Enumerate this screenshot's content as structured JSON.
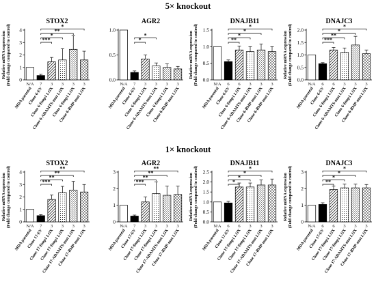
{
  "sections": [
    {
      "title": "5× knockout"
    },
    {
      "title": "1× knockout"
    }
  ],
  "colors": {
    "parental": "#ffffff",
    "ev": "#000000",
    "stroke": "#000000",
    "bracket": "#000000"
  },
  "chart_data": [
    {
      "type": "bar",
      "title": "STOX2",
      "ylabel": "Relative mRNA expression\n(Fold change compared to control)",
      "ylim": [
        0,
        4
      ],
      "yticks": [
        0,
        1,
        2,
        3,
        4
      ],
      "categories": [
        "MDA parental",
        "Clone 6-EV",
        "Clone 6-Dmp1 LOX",
        "Clone 6-ADAMTS-mut LOX",
        "Clone 6-Dmp1 LOX",
        "Clone 6-BMP-mut LOX"
      ],
      "n_labels": [
        "N/A",
        "7",
        "3",
        "3",
        "3",
        "3"
      ],
      "values": [
        1.0,
        0.35,
        1.45,
        1.6,
        2.45,
        1.6
      ],
      "errors": [
        0,
        0.1,
        0.35,
        0.9,
        1.1,
        0.7
      ],
      "patterns": [
        "white",
        "black",
        "diag",
        "dots",
        "lines",
        "cross"
      ],
      "significance": [
        {
          "from": 1,
          "to": 2,
          "label": "***"
        },
        {
          "from": 1,
          "to": 3,
          "label": "*"
        },
        {
          "from": 1,
          "to": 4,
          "label": "**"
        },
        {
          "from": 1,
          "to": 5,
          "label": "*"
        }
      ]
    },
    {
      "type": "bar",
      "title": "AGR2",
      "ylabel": "",
      "ylim": [
        0,
        1
      ],
      "yticks": [
        0,
        0.5,
        1
      ],
      "ytick_labels": [
        "0.0",
        "0.5",
        "1.0"
      ],
      "categories": [
        "MDA parental",
        "Clone 6-EV",
        "Clone 6-Dmp1 LOX",
        "Clone 6-ADAMTS-mut LOX",
        "Clone 6-Dmp1 LOX",
        "Clone 6-BMP-mut LOX"
      ],
      "n_labels": [
        "N/A",
        "7",
        "3",
        "3",
        "3",
        "3"
      ],
      "values": [
        1.0,
        0.15,
        0.42,
        0.28,
        0.25,
        0.22
      ],
      "errors": [
        0,
        0.03,
        0.08,
        0.06,
        0.07,
        0.05
      ],
      "patterns": [
        "white",
        "black",
        "diag",
        "dots",
        "lines",
        "cross"
      ],
      "significance": [
        {
          "from": 1,
          "to": 2,
          "label": "*"
        },
        {
          "from": 1,
          "to": 3,
          "label": "*"
        }
      ]
    },
    {
      "type": "bar",
      "title": "DNAJB11",
      "ylabel": "Relative mRNA expression\n(Fold change compared to control)",
      "ylim": [
        0,
        1.5
      ],
      "yticks": [
        0,
        0.5,
        1,
        1.5
      ],
      "ytick_labels": [
        "0.0",
        "0.5",
        "1.0",
        "1.5"
      ],
      "categories": [
        "MDA parental",
        "Clone 6-EV",
        "Clone 6-Dmp1 LOX",
        "Clone 6-ADAMTS-mut LOX",
        "Clone 6-BMP-mut LOX",
        "Clone 6-BMP-mut LOX"
      ],
      "n_labels": [
        "N/A",
        "6",
        "6",
        "3",
        "3",
        "3"
      ],
      "values": [
        1.0,
        0.55,
        0.9,
        0.85,
        0.9,
        0.85
      ],
      "errors": [
        0,
        0.05,
        0.12,
        0.15,
        0.18,
        0.15
      ],
      "patterns": [
        "white",
        "black",
        "diag",
        "dots",
        "lines",
        "cross"
      ],
      "significance": [
        {
          "from": 1,
          "to": 2,
          "label": "**"
        },
        {
          "from": 1,
          "to": 3,
          "label": "*"
        },
        {
          "from": 1,
          "to": 4,
          "label": "*"
        },
        {
          "from": 1,
          "to": 5,
          "label": "*"
        }
      ]
    },
    {
      "type": "bar",
      "title": "DNAJC3",
      "ylabel": "Relative mRNA expression\n(Fold change compared to control)",
      "ylim": [
        0,
        2
      ],
      "yticks": [
        0,
        0.5,
        1,
        1.5,
        2
      ],
      "ytick_labels": [
        "0.0",
        "0.5",
        "1.0",
        "1.5",
        "2.0"
      ],
      "categories": [
        "MDA parental",
        "Clone 6-EV",
        "Clone 6-Dmp1 LOX",
        "Clone 6-ADAMTS-mut LOX",
        "Clone 6-Dmp1 LOX",
        "Clone 6-BMP-mut LOX"
      ],
      "n_labels": [
        "N/A",
        "6",
        "6",
        "3",
        "3",
        "3"
      ],
      "values": [
        1.0,
        0.65,
        1.2,
        1.1,
        1.4,
        1.05
      ],
      "errors": [
        0,
        0.04,
        0.1,
        0.18,
        0.35,
        0.15
      ],
      "patterns": [
        "white",
        "black",
        "diag",
        "dots",
        "lines",
        "cross"
      ],
      "significance": [
        {
          "from": 1,
          "to": 2,
          "label": "***"
        },
        {
          "from": 1,
          "to": 3,
          "label": "**"
        },
        {
          "from": 1,
          "to": 4,
          "label": "*"
        },
        {
          "from": 1,
          "to": 5,
          "label": "*"
        }
      ]
    },
    {
      "type": "bar",
      "title": "STOX2",
      "ylabel": "Relative mRNA expression\n(Fold change compared to control)",
      "ylim": [
        0,
        4
      ],
      "yticks": [
        0,
        1,
        2,
        3,
        4
      ],
      "categories": [
        "MDA parental",
        "Clone 17-EV",
        "Clone 17-Dmp1 LOX",
        "Clone 17-Dmp1 LOX",
        "Clone 17-ADAMTS-mut LOX",
        "Clone 17-BMP-mut LOX"
      ],
      "n_labels": [
        "N/A",
        "7",
        "3",
        "3",
        "3",
        "3"
      ],
      "values": [
        1.0,
        0.5,
        1.8,
        2.35,
        2.55,
        2.4
      ],
      "errors": [
        0,
        0.08,
        0.35,
        0.5,
        0.7,
        0.6
      ],
      "patterns": [
        "white",
        "black",
        "diag",
        "dots",
        "lines",
        "cross"
      ],
      "significance": [
        {
          "from": 1,
          "to": 2,
          "label": "***"
        },
        {
          "from": 1,
          "to": 3,
          "label": "**"
        },
        {
          "from": 1,
          "to": 4,
          "label": "**"
        },
        {
          "from": 1,
          "to": 5,
          "label": "**"
        }
      ]
    },
    {
      "type": "bar",
      "title": "AGR2",
      "ylabel": "",
      "ylim": [
        0,
        3
      ],
      "yticks": [
        0,
        1,
        2,
        3
      ],
      "categories": [
        "MDA parental",
        "Clone 17-EV",
        "Clone 17-Dmp1 LOX",
        "Clone 17-Dmp1 LOX",
        "Clone 17-ADAMTS-mut LOX",
        "Clone 17-BMP-mut LOX"
      ],
      "n_labels": [
        "N/A",
        "7",
        "3",
        "3",
        "3",
        "3"
      ],
      "values": [
        1.0,
        0.35,
        1.2,
        1.7,
        1.6,
        1.65
      ],
      "errors": [
        0,
        0.06,
        0.3,
        0.7,
        0.55,
        0.5
      ],
      "patterns": [
        "white",
        "black",
        "diag",
        "dots",
        "lines",
        "cross"
      ],
      "significance": [
        {
          "from": 1,
          "to": 2,
          "label": "***"
        },
        {
          "from": 1,
          "to": 3,
          "label": "**"
        },
        {
          "from": 1,
          "to": 4,
          "label": "**"
        },
        {
          "from": 1,
          "to": 5,
          "label": "**"
        }
      ]
    },
    {
      "type": "bar",
      "title": "DNAJB11",
      "ylabel": "Relative mRNA expression\n(Fold change compared to control)",
      "ylim": [
        0,
        2.5
      ],
      "yticks": [
        0,
        0.5,
        1,
        1.5,
        2,
        2.5
      ],
      "ytick_labels": [
        "0.0",
        "0.5",
        "1.0",
        "1.5",
        "2.0",
        "2.5"
      ],
      "categories": [
        "MDA parental",
        "Clone 17-EV",
        "Clone 17-Dmp1 LOX",
        "Clone 17-Dmp1 LOX",
        "Clone 17-ADAMTS-mut LOX",
        "Clone 17-BMP-mut LOX"
      ],
      "n_labels": [
        "N/A",
        "6",
        "6",
        "3",
        "3",
        "3"
      ],
      "values": [
        1.0,
        0.95,
        1.75,
        1.75,
        1.85,
        1.85
      ],
      "errors": [
        0,
        0.08,
        0.2,
        0.2,
        0.25,
        0.3
      ],
      "patterns": [
        "white",
        "black",
        "diag",
        "dots",
        "lines",
        "cross"
      ],
      "significance": [
        {
          "from": 1,
          "to": 2,
          "label": "*"
        },
        {
          "from": 1,
          "to": 3,
          "label": "*"
        },
        {
          "from": 1,
          "to": 4,
          "label": "*"
        },
        {
          "from": 1,
          "to": 5,
          "label": "*"
        }
      ]
    },
    {
      "type": "bar",
      "title": "DNAJC3",
      "ylabel": "Relative mRNA expression\n(Fold change compared to control)",
      "ylim": [
        0,
        3
      ],
      "yticks": [
        0,
        1,
        2,
        3
      ],
      "categories": [
        "MDA parental",
        "Clone 17-EV",
        "Clone 17-Dmp1 LOX",
        "Clone 17-Dmp1 LOX",
        "Clone 17-ADAMTS-mut LOX",
        "Clone 17-BMP-mut LOX"
      ],
      "n_labels": [
        "N/A",
        "6",
        "6",
        "3",
        "3",
        "3"
      ],
      "values": [
        1.0,
        1.05,
        1.95,
        2.05,
        2.05,
        2.05
      ],
      "errors": [
        0,
        0.1,
        0.2,
        0.22,
        0.22,
        0.2
      ],
      "patterns": [
        "white",
        "black",
        "diag",
        "dots",
        "lines",
        "cross"
      ],
      "significance": [
        {
          "from": 1,
          "to": 2,
          "label": "**"
        },
        {
          "from": 1,
          "to": 3,
          "label": "*"
        },
        {
          "from": 1,
          "to": 4,
          "label": "*"
        },
        {
          "from": 1,
          "to": 5,
          "label": "*"
        }
      ]
    }
  ]
}
